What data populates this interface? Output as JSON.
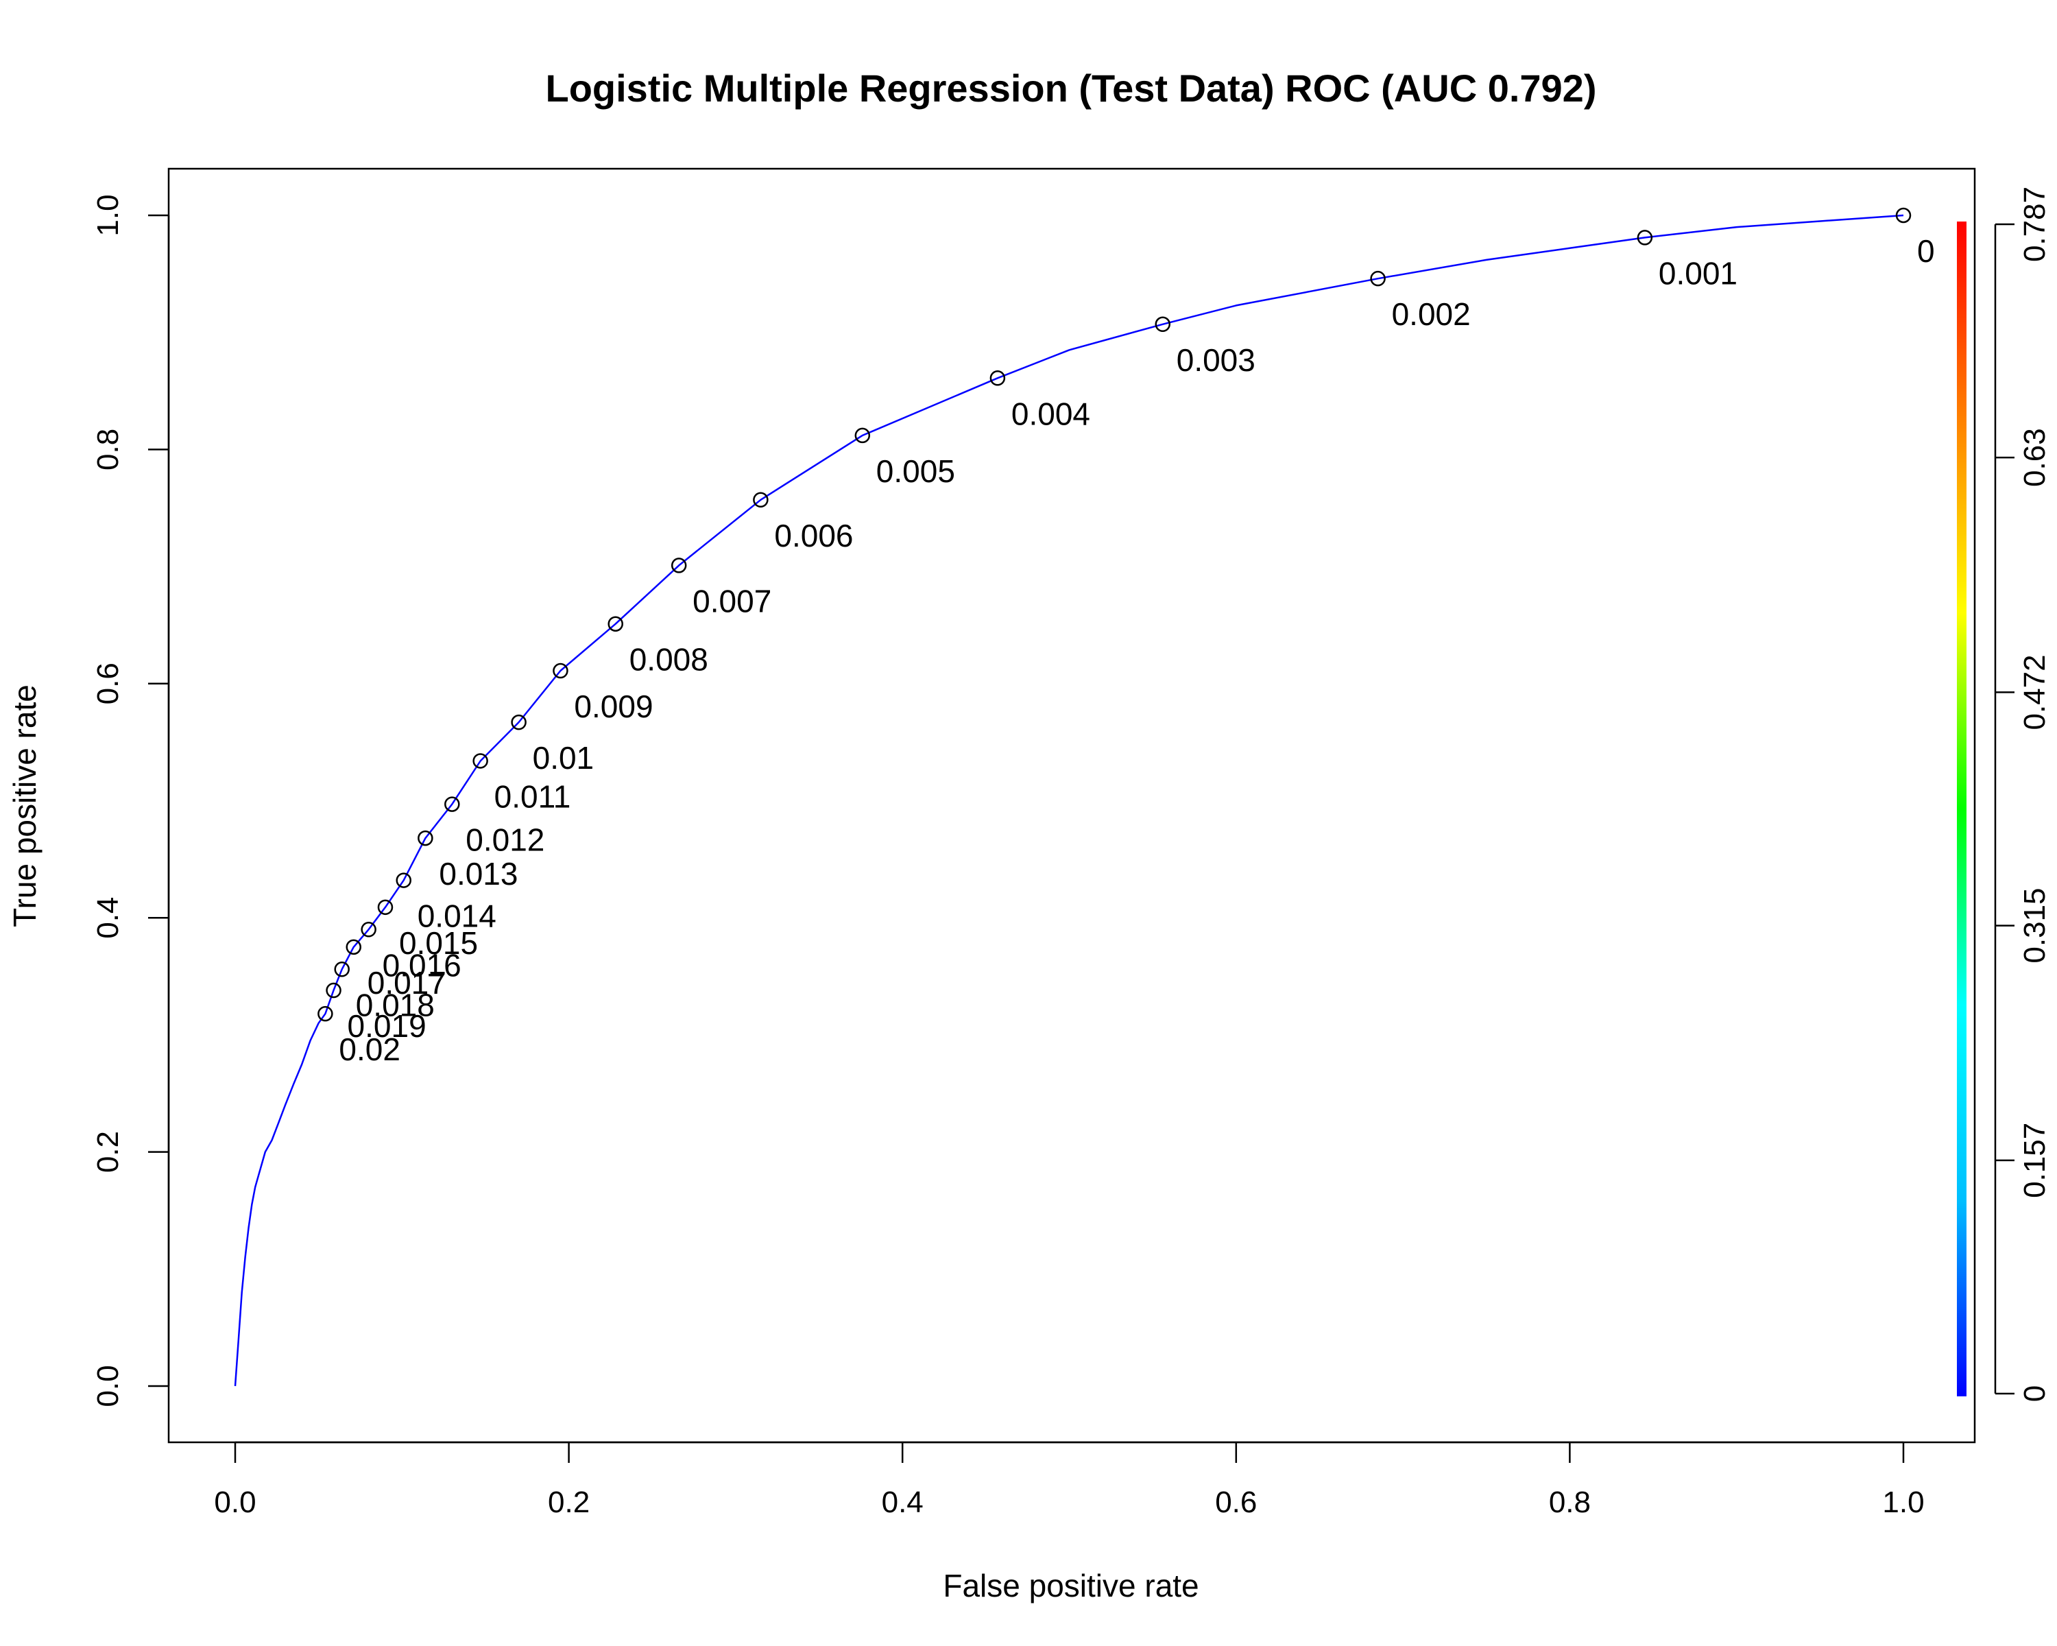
{
  "chart_data": {
    "type": "line",
    "title": "Logistic Multiple Regression (Test Data) ROC (AUC 0.792)",
    "xlabel": "False positive rate",
    "ylabel": "True positive rate",
    "xlim": [
      0,
      1
    ],
    "ylim": [
      0,
      1
    ],
    "x_ticks": [
      "0.0",
      "0.2",
      "0.4",
      "0.6",
      "0.8",
      "1.0"
    ],
    "y_ticks": [
      "0.0",
      "0.2",
      "0.4",
      "0.6",
      "0.8",
      "1.0"
    ],
    "grid": false,
    "curve_color": "#0000FF",
    "series": [
      {
        "x": [
          0.0,
          0.002,
          0.004,
          0.006,
          0.008,
          0.01,
          0.012,
          0.015,
          0.018,
          0.022,
          0.026,
          0.03,
          0.035,
          0.04,
          0.045,
          0.05,
          0.054,
          0.059,
          0.064,
          0.071,
          0.08,
          0.09,
          0.101,
          0.114,
          0.13,
          0.147,
          0.17,
          0.195,
          0.228,
          0.266,
          0.315,
          0.376,
          0.457,
          0.5,
          0.556,
          0.6,
          0.685,
          0.75,
          0.8,
          0.845,
          0.9,
          0.95,
          1.0
        ],
        "y": [
          0.0,
          0.04,
          0.08,
          0.11,
          0.135,
          0.155,
          0.17,
          0.185,
          0.2,
          0.21,
          0.225,
          0.24,
          0.258,
          0.275,
          0.295,
          0.31,
          0.318,
          0.338,
          0.356,
          0.375,
          0.39,
          0.409,
          0.432,
          0.468,
          0.497,
          0.534,
          0.567,
          0.611,
          0.651,
          0.701,
          0.757,
          0.812,
          0.861,
          0.885,
          0.907,
          0.923,
          0.946,
          0.962,
          0.972,
          0.981,
          0.99,
          0.995,
          1.0
        ]
      }
    ],
    "cutoffs": [
      {
        "label": "0",
        "x": 1.0,
        "y": 1.0
      },
      {
        "label": "0.001",
        "x": 0.845,
        "y": 0.981
      },
      {
        "label": "0.002",
        "x": 0.685,
        "y": 0.946
      },
      {
        "label": "0.003",
        "x": 0.556,
        "y": 0.907
      },
      {
        "label": "0.004",
        "x": 0.457,
        "y": 0.861
      },
      {
        "label": "0.005",
        "x": 0.376,
        "y": 0.812
      },
      {
        "label": "0.006",
        "x": 0.315,
        "y": 0.757
      },
      {
        "label": "0.007",
        "x": 0.266,
        "y": 0.701
      },
      {
        "label": "0.008",
        "x": 0.228,
        "y": 0.651
      },
      {
        "label": "0.009",
        "x": 0.195,
        "y": 0.611
      },
      {
        "label": "0.01",
        "x": 0.17,
        "y": 0.567
      },
      {
        "label": "0.011",
        "x": 0.147,
        "y": 0.534
      },
      {
        "label": "0.012",
        "x": 0.13,
        "y": 0.497
      },
      {
        "label": "0.013",
        "x": 0.114,
        "y": 0.468
      },
      {
        "label": "0.014",
        "x": 0.101,
        "y": 0.432
      },
      {
        "label": "0.015",
        "x": 0.09,
        "y": 0.409
      },
      {
        "label": "0.016",
        "x": 0.08,
        "y": 0.39
      },
      {
        "label": "0.017",
        "x": 0.071,
        "y": 0.375
      },
      {
        "label": "0.018",
        "x": 0.064,
        "y": 0.356
      },
      {
        "label": "0.019",
        "x": 0.059,
        "y": 0.338
      },
      {
        "label": "0.02",
        "x": 0.054,
        "y": 0.318
      }
    ],
    "colorbar": {
      "ticks": [
        {
          "label": "0",
          "value": 0
        },
        {
          "label": "0.157",
          "value": 0.157
        },
        {
          "label": "0.315",
          "value": 0.315
        },
        {
          "label": "0.472",
          "value": 0.472
        },
        {
          "label": "0.63",
          "value": 0.63
        },
        {
          "label": "0.787",
          "value": 0.787
        }
      ],
      "min": 0,
      "max": 0.787,
      "colors": [
        "#0000FF",
        "#00BFFF",
        "#00FFFF",
        "#00FF00",
        "#FFFF00",
        "#FF8000",
        "#FF0000"
      ]
    }
  }
}
